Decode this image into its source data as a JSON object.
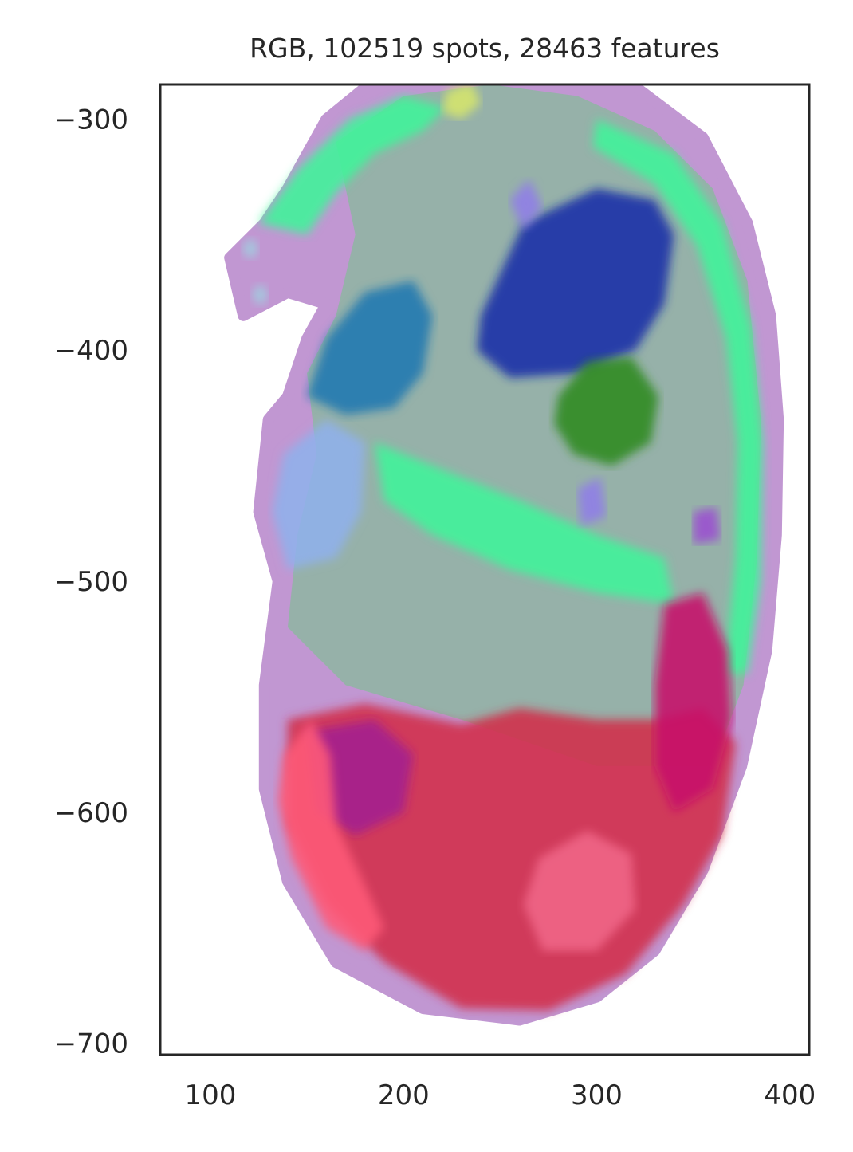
{
  "chart_data": {
    "type": "scatter",
    "title": "RGB, 102519 spots, 28463 features",
    "xlabel": "",
    "ylabel": "",
    "xlim": [
      74,
      410
    ],
    "ylim": [
      -705,
      -285
    ],
    "xticks": [
      100,
      200,
      300,
      400
    ],
    "yticks": [
      -300,
      -400,
      -500,
      -600,
      -700
    ],
    "xtick_labels": [
      "100",
      "200",
      "300",
      "400"
    ],
    "ytick_labels": [
      "−300",
      "−400",
      "−500",
      "−600",
      "−700"
    ],
    "grid": false,
    "legend": "none",
    "colors": {
      "frame": "#262626",
      "outer_rim": "#c197d2",
      "body_tissue": "#8fb5a3",
      "spine_green": "#3ef59a",
      "liver_blue": "#1a2fa8",
      "heart_green": "#2f8a1b",
      "head_red": "#d12c4a",
      "head_magenta": "#a3208f",
      "head_pink": "#ff5a78",
      "face_blue": "#1d77b0",
      "light_blue": "#8fb1ec",
      "violet": "#8f7de8",
      "yellow_green": "#d6e66b"
    },
    "regions": [
      {
        "name": "embryo-outline",
        "color": "#c197d2",
        "points": [
          [
            128,
            -345
          ],
          [
            140,
            -330
          ],
          [
            160,
            -300
          ],
          [
            185,
            -283
          ],
          [
            215,
            -272
          ],
          [
            245,
            -270
          ],
          [
            280,
            -274
          ],
          [
            320,
            -286
          ],
          [
            355,
            -308
          ],
          [
            378,
            -345
          ],
          [
            390,
            -385
          ],
          [
            394,
            -430
          ],
          [
            393,
            -480
          ],
          [
            388,
            -530
          ],
          [
            375,
            -580
          ],
          [
            355,
            -625
          ],
          [
            330,
            -660
          ],
          [
            300,
            -680
          ],
          [
            260,
            -690
          ],
          [
            210,
            -685
          ],
          [
            165,
            -665
          ],
          [
            140,
            -630
          ],
          [
            128,
            -590
          ],
          [
            128,
            -545
          ],
          [
            135,
            -500
          ],
          [
            125,
            -470
          ],
          [
            130,
            -430
          ],
          [
            140,
            -420
          ],
          [
            150,
            -395
          ],
          [
            160,
            -380
          ],
          [
            140,
            -375
          ],
          [
            117,
            -385
          ],
          [
            110,
            -360
          ]
        ]
      },
      {
        "name": "body-interior",
        "color": "#8fb5a3",
        "points": [
          [
            165,
            -310
          ],
          [
            200,
            -290
          ],
          [
            245,
            -285
          ],
          [
            290,
            -290
          ],
          [
            330,
            -305
          ],
          [
            360,
            -330
          ],
          [
            378,
            -370
          ],
          [
            385,
            -430
          ],
          [
            383,
            -490
          ],
          [
            376,
            -545
          ],
          [
            360,
            -580
          ],
          [
            300,
            -580
          ],
          [
            230,
            -560
          ],
          [
            170,
            -545
          ],
          [
            140,
            -520
          ],
          [
            145,
            -480
          ],
          [
            155,
            -445
          ],
          [
            150,
            -410
          ],
          [
            165,
            -385
          ],
          [
            175,
            -350
          ]
        ]
      },
      {
        "name": "spine-band",
        "color": "#3ef59a",
        "points": [
          [
            300,
            -300
          ],
          [
            340,
            -315
          ],
          [
            365,
            -345
          ],
          [
            380,
            -390
          ],
          [
            386,
            -440
          ],
          [
            385,
            -500
          ],
          [
            378,
            -540
          ],
          [
            366,
            -540
          ],
          [
            372,
            -490
          ],
          [
            373,
            -440
          ],
          [
            367,
            -395
          ],
          [
            352,
            -355
          ],
          [
            330,
            -328
          ],
          [
            298,
            -312
          ]
        ]
      },
      {
        "name": "tail-curl",
        "color": "#3ef59a",
        "points": [
          [
            125,
            -345
          ],
          [
            145,
            -322
          ],
          [
            172,
            -300
          ],
          [
            200,
            -290
          ],
          [
            222,
            -295
          ],
          [
            210,
            -305
          ],
          [
            185,
            -315
          ],
          [
            165,
            -332
          ],
          [
            150,
            -350
          ]
        ]
      },
      {
        "name": "face-region",
        "color": "#1d77b0",
        "points": [
          [
            160,
            -395
          ],
          [
            180,
            -375
          ],
          [
            205,
            -370
          ],
          [
            215,
            -385
          ],
          [
            210,
            -410
          ],
          [
            195,
            -425
          ],
          [
            170,
            -428
          ],
          [
            150,
            -420
          ]
        ]
      },
      {
        "name": "liver",
        "color": "#1a2fa8",
        "points": [
          [
            240,
            -385
          ],
          [
            262,
            -345
          ],
          [
            300,
            -330
          ],
          [
            330,
            -335
          ],
          [
            340,
            -350
          ],
          [
            335,
            -380
          ],
          [
            320,
            -400
          ],
          [
            290,
            -410
          ],
          [
            255,
            -412
          ],
          [
            238,
            -400
          ]
        ]
      },
      {
        "name": "heart",
        "color": "#2f8a1b",
        "points": [
          [
            280,
            -420
          ],
          [
            295,
            -405
          ],
          [
            318,
            -403
          ],
          [
            332,
            -420
          ],
          [
            328,
            -440
          ],
          [
            308,
            -450
          ],
          [
            288,
            -445
          ],
          [
            278,
            -432
          ]
        ]
      },
      {
        "name": "lower-body-stripes",
        "color": "#3ef59a",
        "points": [
          [
            185,
            -440
          ],
          [
            215,
            -450
          ],
          [
            260,
            -465
          ],
          [
            300,
            -480
          ],
          [
            335,
            -490
          ],
          [
            340,
            -510
          ],
          [
            300,
            -505
          ],
          [
            255,
            -495
          ],
          [
            215,
            -480
          ],
          [
            190,
            -465
          ]
        ]
      },
      {
        "name": "lower-limb",
        "color": "#8fb1ec",
        "points": [
          [
            138,
            -445
          ],
          [
            160,
            -430
          ],
          [
            180,
            -440
          ],
          [
            178,
            -470
          ],
          [
            165,
            -490
          ],
          [
            140,
            -495
          ],
          [
            132,
            -470
          ]
        ]
      },
      {
        "name": "head-red",
        "color": "#d12c4a",
        "points": [
          [
            140,
            -560
          ],
          [
            180,
            -553
          ],
          [
            230,
            -562
          ],
          [
            260,
            -555
          ],
          [
            300,
            -560
          ],
          [
            330,
            -560
          ],
          [
            355,
            -555
          ],
          [
            372,
            -570
          ],
          [
            365,
            -610
          ],
          [
            345,
            -640
          ],
          [
            315,
            -670
          ],
          [
            275,
            -686
          ],
          [
            230,
            -685
          ],
          [
            190,
            -665
          ],
          [
            160,
            -640
          ],
          [
            140,
            -605
          ]
        ]
      },
      {
        "name": "head-magenta",
        "color": "#a3208f",
        "points": [
          [
            150,
            -565
          ],
          [
            185,
            -560
          ],
          [
            205,
            -575
          ],
          [
            200,
            -600
          ],
          [
            175,
            -610
          ],
          [
            155,
            -600
          ]
        ]
      },
      {
        "name": "head-pink-left",
        "color": "#ff5a78",
        "points": [
          [
            138,
            -575
          ],
          [
            152,
            -560
          ],
          [
            162,
            -575
          ],
          [
            165,
            -605
          ],
          [
            178,
            -628
          ],
          [
            190,
            -650
          ],
          [
            180,
            -660
          ],
          [
            160,
            -650
          ],
          [
            142,
            -620
          ],
          [
            135,
            -595
          ]
        ]
      },
      {
        "name": "head-magenta-right",
        "color": "#c7126a",
        "points": [
          [
            335,
            -510
          ],
          [
            355,
            -505
          ],
          [
            368,
            -530
          ],
          [
            370,
            -560
          ],
          [
            360,
            -590
          ],
          [
            340,
            -600
          ],
          [
            330,
            -580
          ],
          [
            330,
            -545
          ]
        ]
      },
      {
        "name": "head-pink-right",
        "color": "#f06688",
        "points": [
          [
            270,
            -620
          ],
          [
            295,
            -608
          ],
          [
            318,
            -618
          ],
          [
            320,
            -642
          ],
          [
            300,
            -660
          ],
          [
            272,
            -660
          ],
          [
            262,
            -640
          ]
        ]
      },
      {
        "name": "tail-tip-upper",
        "color": "#9fd0e0",
        "points": [
          [
            116,
            -356
          ],
          [
            121,
            -351
          ],
          [
            125,
            -356
          ],
          [
            121,
            -361
          ]
        ]
      },
      {
        "name": "tail-tip-lower",
        "color": "#9fd0e0",
        "points": [
          [
            121,
            -376
          ],
          [
            126,
            -371
          ],
          [
            130,
            -376
          ],
          [
            126,
            -381
          ]
        ]
      },
      {
        "name": "upper-yellow-spot",
        "color": "#d6e66b",
        "points": [
          [
            222,
            -288
          ],
          [
            235,
            -284
          ],
          [
            240,
            -293
          ],
          [
            230,
            -300
          ],
          [
            220,
            -297
          ]
        ]
      },
      {
        "name": "mid-violet-1",
        "color": "#8f7de8",
        "points": [
          [
            255,
            -335
          ],
          [
            265,
            -326
          ],
          [
            272,
            -338
          ],
          [
            262,
            -348
          ]
        ]
      },
      {
        "name": "mid-violet-2",
        "color": "#8f7de8",
        "points": [
          [
            290,
            -460
          ],
          [
            302,
            -455
          ],
          [
            305,
            -472
          ],
          [
            292,
            -476
          ]
        ]
      },
      {
        "name": "mid-violet-3",
        "color": "#9b4fd0",
        "points": [
          [
            350,
            -470
          ],
          [
            362,
            -468
          ],
          [
            364,
            -482
          ],
          [
            350,
            -484
          ]
        ]
      }
    ]
  }
}
